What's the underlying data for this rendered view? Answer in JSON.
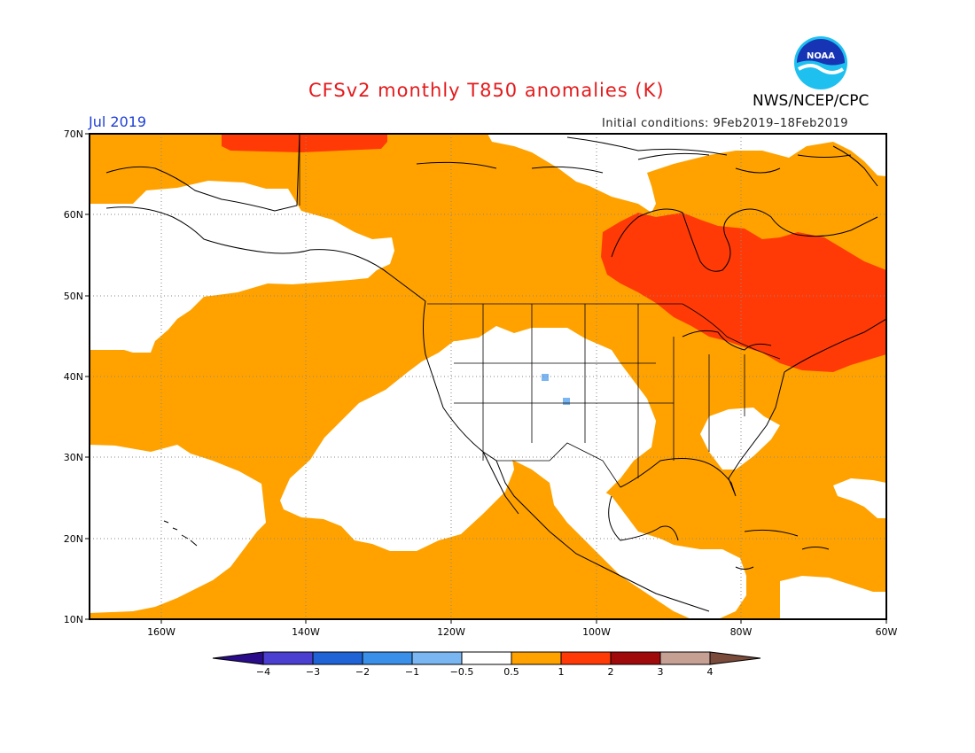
{
  "header": {
    "title": "CFSv2 monthly T850 anomalies (K)",
    "month": "Jul 2019",
    "initial_conditions": "Initial conditions: 9Feb2019–18Feb2019",
    "agency": "NWS/NCEP/CPC",
    "logo_text": "NOAA"
  },
  "map": {
    "latitude_labels": [
      "70N",
      "60N",
      "50N",
      "40N",
      "30N",
      "20N",
      "10N"
    ],
    "longitude_labels": [
      "160W",
      "140W",
      "120W",
      "100W",
      "80W",
      "60W"
    ],
    "extent": {
      "lon": [
        -171,
        -60
      ],
      "lat": [
        10,
        70
      ]
    }
  },
  "colorbar": {
    "labels": [
      "−4",
      "−3",
      "−2",
      "−1",
      "−0.5",
      "0.5",
      "1",
      "2",
      "3",
      "4"
    ],
    "colors": {
      "below_-4": "#2a0c8a",
      "-4_-3": "#4a3fd0",
      "-3_-2": "#1f63d6",
      "-2_-1": "#3a8fe8",
      "-1_-0.5": "#7ab6f2",
      "-0.5_0.5": "#ffffff",
      "0.5_1": "#ffa200",
      "1_2": "#ff3a06",
      "2_3": "#a10a0a",
      "3_4": "#c6a093",
      "above_4": "#7a4a3a"
    }
  }
}
